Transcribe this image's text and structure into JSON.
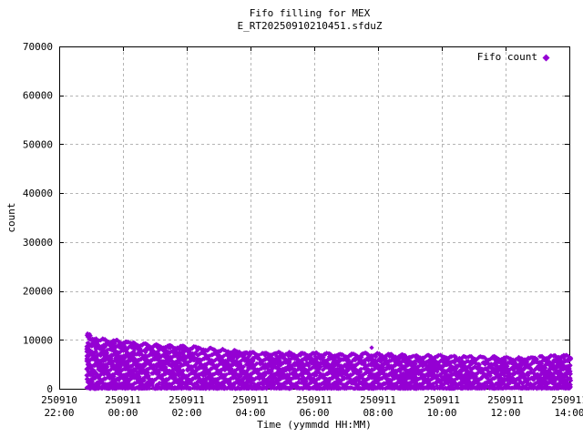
{
  "title": "Fifo filling for MEX",
  "subtitle": "E_RT20250910210451.sfduZ",
  "legend": {
    "label": "Fifo count"
  },
  "axes": {
    "xlabel": "Time (yymmdd HH:MM)",
    "ylabel": "count",
    "x_ticks": [
      {
        "line1": "250910",
        "line2": "22:00",
        "hours": 0
      },
      {
        "line1": "250911",
        "line2": "00:00",
        "hours": 2
      },
      {
        "line1": "250911",
        "line2": "02:00",
        "hours": 4
      },
      {
        "line1": "250911",
        "line2": "04:00",
        "hours": 6
      },
      {
        "line1": "250911",
        "line2": "06:00",
        "hours": 8
      },
      {
        "line1": "250911",
        "line2": "08:00",
        "hours": 10
      },
      {
        "line1": "250911",
        "line2": "10:00",
        "hours": 12
      },
      {
        "line1": "250911",
        "line2": "12:00",
        "hours": 14
      },
      {
        "line1": "250911",
        "line2": "14:00",
        "hours": 16
      }
    ],
    "y_ticks": [
      {
        "label": "0",
        "value": 0
      },
      {
        "label": "10000",
        "value": 10000
      },
      {
        "label": "20000",
        "value": 20000
      },
      {
        "label": "30000",
        "value": 30000
      },
      {
        "label": "40000",
        "value": 40000
      },
      {
        "label": "50000",
        "value": 50000
      },
      {
        "label": "60000",
        "value": 60000
      },
      {
        "label": "70000",
        "value": 70000
      }
    ]
  },
  "chart_data": {
    "type": "scatter",
    "title": "Fifo filling for MEX",
    "subtitle": "E_RT20250910210451.sfduZ",
    "xlabel": "Time (yymmdd HH:MM)",
    "ylabel": "count",
    "ylim": [
      0,
      70000
    ],
    "x_unit": "hours after 250910 22:00",
    "x_range": [
      0,
      16
    ],
    "x_tick_step_hours": 2,
    "grid": true,
    "legend_position": "top-right-inside",
    "series": [
      {
        "name": "Fifo count",
        "marker": "diamond",
        "color": "#9400d3",
        "band": {
          "description": "dense oscillating band of samples between ~0 and the upper envelope, plus a near-solid row of points at ~0",
          "starts_at_hours": 0.86,
          "ends_at_hours": 16.05,
          "lower": 0,
          "upper_envelope": [
            [
              0.86,
              11800
            ],
            [
              0.95,
              11200
            ],
            [
              1.1,
              10600
            ],
            [
              1.3,
              10200
            ],
            [
              1.6,
              10000
            ],
            [
              2.0,
              9800
            ],
            [
              2.5,
              9300
            ],
            [
              3.0,
              9000
            ],
            [
              3.5,
              8800
            ],
            [
              4.0,
              8700
            ],
            [
              4.5,
              8400
            ],
            [
              5.0,
              8100
            ],
            [
              5.5,
              7900
            ],
            [
              6.0,
              7500
            ],
            [
              6.5,
              7400
            ],
            [
              7.0,
              7500
            ],
            [
              7.5,
              7300
            ],
            [
              8.0,
              7400
            ],
            [
              8.5,
              7200
            ],
            [
              9.0,
              7000
            ],
            [
              9.5,
              7300
            ],
            [
              10.0,
              7200
            ],
            [
              10.5,
              7000
            ],
            [
              11.0,
              6900
            ],
            [
              11.5,
              6800
            ],
            [
              12.0,
              6900
            ],
            [
              12.5,
              6700
            ],
            [
              13.0,
              6600
            ],
            [
              13.5,
              6500
            ],
            [
              14.0,
              6500
            ],
            [
              14.5,
              6400
            ],
            [
              15.0,
              6600
            ],
            [
              15.5,
              6900
            ],
            [
              16.05,
              6900
            ]
          ],
          "outliers": [
            [
              9.8,
              8400
            ]
          ]
        }
      }
    ]
  },
  "colors": {
    "marker": "#9400d3",
    "grid": "#b4b4b4",
    "border": "#000000",
    "background": "#ffffff",
    "text": "#000000"
  }
}
